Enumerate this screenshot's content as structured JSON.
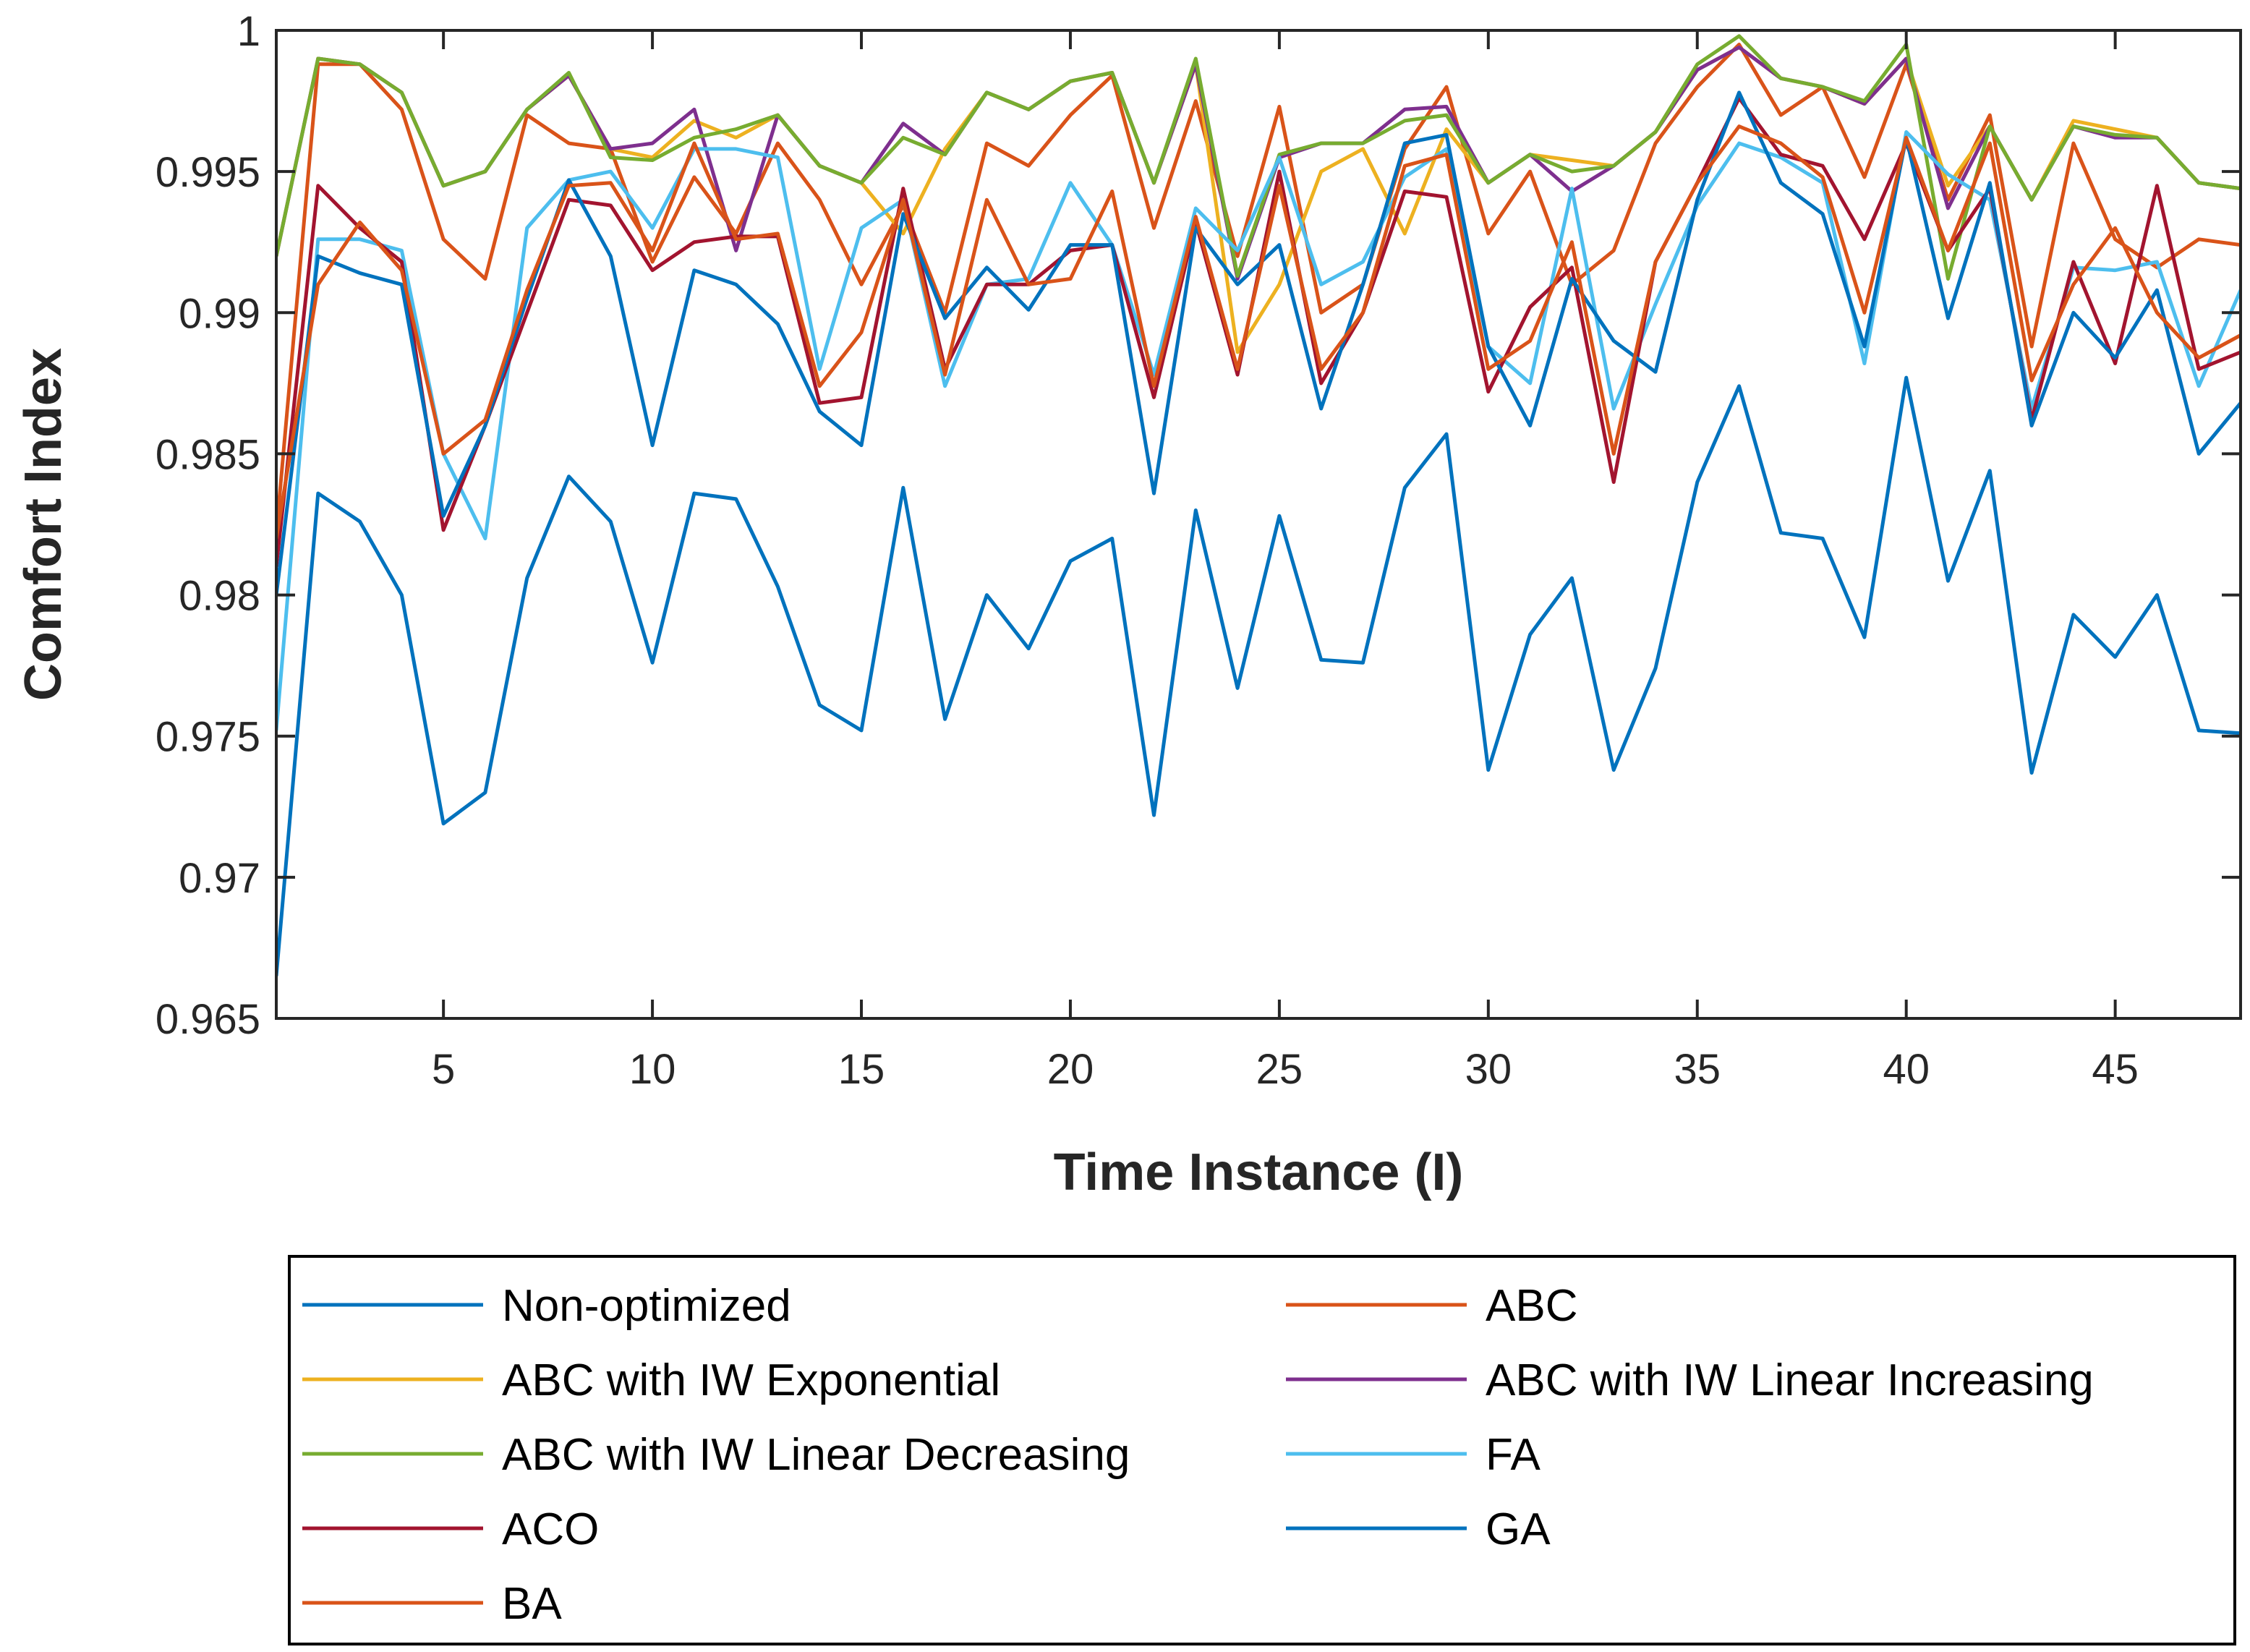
{
  "chart_data": {
    "type": "line",
    "title": "",
    "xlabel": "Time Instance (I)",
    "ylabel": "Comfort Index",
    "xlim": [
      1,
      48
    ],
    "ylim": [
      0.965,
      1.0
    ],
    "xticks": [
      5,
      10,
      15,
      20,
      25,
      30,
      35,
      40,
      45
    ],
    "xtick_labels": [
      "5",
      "10",
      "15",
      "20",
      "25",
      "30",
      "35",
      "40",
      "45"
    ],
    "yticks": [
      0.965,
      0.97,
      0.975,
      0.98,
      0.985,
      0.99,
      0.995,
      1.0
    ],
    "ytick_labels": [
      "0.965",
      "0.97",
      "0.975",
      "0.98",
      "0.985",
      "0.99",
      "0.995",
      "1"
    ],
    "grid": false,
    "legend_position": "bottom",
    "x": [
      1,
      2,
      3,
      4,
      5,
      6,
      7,
      8,
      9,
      10,
      11,
      12,
      13,
      14,
      15,
      16,
      17,
      18,
      19,
      20,
      21,
      22,
      23,
      24,
      25,
      26,
      27,
      28,
      29,
      30,
      31,
      32,
      33,
      34,
      35,
      36,
      37,
      38,
      39,
      40,
      41,
      42,
      43,
      44,
      45,
      46,
      47,
      48
    ],
    "series": [
      {
        "name": "Non-optimized",
        "color": "#0072BD",
        "values": [
          0.9665,
          0.9836,
          0.9826,
          0.98,
          0.9719,
          0.973,
          0.9806,
          0.9842,
          0.9826,
          0.9776,
          0.9836,
          0.9834,
          0.9803,
          0.9761,
          0.9752,
          0.9838,
          0.9756,
          0.98,
          0.9781,
          0.9812,
          0.982,
          0.9722,
          0.983,
          0.9767,
          0.9828,
          0.9777,
          0.9776,
          0.9838,
          0.9857,
          0.9738,
          0.9786,
          0.9806,
          0.9738,
          0.9774,
          0.984,
          0.9874,
          0.9822,
          0.982,
          0.9785,
          0.9877,
          0.9805,
          0.9844,
          0.9737,
          0.9793,
          0.9778,
          0.98,
          0.9752,
          0.9751
        ]
      },
      {
        "name": "ABC",
        "color": "#D95319",
        "values": [
          0.9822,
          0.9988,
          0.9988,
          0.9972,
          0.9926,
          0.9912,
          0.997,
          0.996,
          0.9958,
          0.9918,
          0.9948,
          0.9928,
          0.996,
          0.994,
          0.991,
          0.9938,
          0.99,
          0.996,
          0.9952,
          0.997,
          0.9984,
          0.993,
          0.9975,
          0.992,
          0.9973,
          0.99,
          0.991,
          0.9958,
          0.998,
          0.9928,
          0.995,
          0.991,
          0.9922,
          0.996,
          0.998,
          0.9995,
          0.997,
          0.998,
          0.9948,
          0.9988,
          0.994,
          0.997,
          0.9888,
          0.996,
          0.9926,
          0.9916,
          0.9926,
          0.9924
        ]
      },
      {
        "name": "ABC with IW Exponential",
        "color": "#EDB120",
        "values": [
          0.992,
          0.999,
          0.9988,
          0.9978,
          0.9945,
          0.995,
          0.9972,
          0.9984,
          0.9958,
          0.9955,
          0.9968,
          0.9962,
          0.997,
          0.9952,
          0.9946,
          0.9928,
          0.9958,
          0.9978,
          0.9972,
          0.9982,
          0.9985,
          0.9946,
          0.9988,
          0.9886,
          0.991,
          0.995,
          0.9958,
          0.9928,
          0.9965,
          0.9946,
          0.9956,
          0.9954,
          0.9952,
          0.9964,
          0.9986,
          0.9994,
          0.9983,
          0.998,
          0.9974,
          0.999,
          0.9945,
          0.9966,
          0.994,
          0.9968,
          0.9965,
          0.9962,
          0.9946,
          0.9944
        ]
      },
      {
        "name": "ABC with IW Linear Increasing",
        "color": "#7E2F8E",
        "values": [
          0.992,
          0.999,
          0.9988,
          0.9978,
          0.9945,
          0.995,
          0.9972,
          0.9984,
          0.9958,
          0.996,
          0.9972,
          0.9922,
          0.997,
          0.9952,
          0.9946,
          0.9967,
          0.9956,
          0.9978,
          0.9972,
          0.9982,
          0.9985,
          0.9946,
          0.9988,
          0.9912,
          0.9955,
          0.996,
          0.996,
          0.9972,
          0.9973,
          0.9946,
          0.9956,
          0.9943,
          0.9952,
          0.9964,
          0.9986,
          0.9994,
          0.9983,
          0.998,
          0.9974,
          0.999,
          0.9937,
          0.9966,
          0.994,
          0.9966,
          0.9962,
          0.9962,
          0.9946,
          0.9944
        ]
      },
      {
        "name": "ABC with IW Linear Decreasing",
        "color": "#77AC30",
        "values": [
          0.992,
          0.999,
          0.9988,
          0.9978,
          0.9945,
          0.995,
          0.9972,
          0.9985,
          0.9955,
          0.9954,
          0.9962,
          0.9965,
          0.997,
          0.9952,
          0.9946,
          0.9962,
          0.9956,
          0.9978,
          0.9972,
          0.9982,
          0.9985,
          0.9946,
          0.999,
          0.9913,
          0.9956,
          0.996,
          0.996,
          0.9968,
          0.997,
          0.9946,
          0.9956,
          0.995,
          0.9952,
          0.9964,
          0.9988,
          0.9998,
          0.9983,
          0.998,
          0.9975,
          0.9995,
          0.9912,
          0.9966,
          0.994,
          0.9966,
          0.9963,
          0.9962,
          0.9946,
          0.9944
        ]
      },
      {
        "name": "FA",
        "color": "#4DBEEE",
        "values": [
          0.9752,
          0.9926,
          0.9926,
          0.9922,
          0.985,
          0.982,
          0.993,
          0.9947,
          0.995,
          0.993,
          0.9958,
          0.9958,
          0.9955,
          0.988,
          0.993,
          0.994,
          0.9874,
          0.991,
          0.9912,
          0.9946,
          0.9924,
          0.9878,
          0.9937,
          0.9922,
          0.9955,
          0.991,
          0.9918,
          0.9948,
          0.9958,
          0.9888,
          0.9875,
          0.9944,
          0.9866,
          0.9903,
          0.9938,
          0.996,
          0.9955,
          0.9946,
          0.9882,
          0.9964,
          0.9949,
          0.994,
          0.9866,
          0.9916,
          0.9915,
          0.9918,
          0.9874,
          0.9908
        ]
      },
      {
        "name": "ACO",
        "color": "#A2142F",
        "values": [
          0.981,
          0.9945,
          0.993,
          0.9918,
          0.9823,
          0.986,
          0.99,
          0.994,
          0.9938,
          0.9915,
          0.9925,
          0.9927,
          0.9927,
          0.9868,
          0.987,
          0.9944,
          0.988,
          0.991,
          0.991,
          0.9922,
          0.9924,
          0.987,
          0.9932,
          0.9878,
          0.995,
          0.9875,
          0.99,
          0.9943,
          0.9941,
          0.9872,
          0.9902,
          0.9916,
          0.984,
          0.9918,
          0.9946,
          0.9976,
          0.9956,
          0.9952,
          0.9926,
          0.996,
          0.9922,
          0.9944,
          0.9862,
          0.9918,
          0.9882,
          0.9945,
          0.988,
          0.9886
        ]
      },
      {
        "name": "GA",
        "color": "#0072BD",
        "values": [
          0.98,
          0.992,
          0.9914,
          0.991,
          0.9828,
          0.986,
          0.9905,
          0.9947,
          0.992,
          0.9853,
          0.9915,
          0.991,
          0.9896,
          0.9865,
          0.9853,
          0.9935,
          0.9898,
          0.9916,
          0.9901,
          0.9924,
          0.9924,
          0.9836,
          0.993,
          0.991,
          0.9924,
          0.9866,
          0.991,
          0.996,
          0.9963,
          0.9888,
          0.986,
          0.9912,
          0.989,
          0.9879,
          0.994,
          0.9978,
          0.9946,
          0.9935,
          0.9888,
          0.9962,
          0.9898,
          0.9946,
          0.986,
          0.99,
          0.9884,
          0.9908,
          0.985,
          0.9868
        ]
      },
      {
        "name": "BA",
        "color": "#D95319",
        "values": [
          0.982,
          0.991,
          0.9932,
          0.9915,
          0.985,
          0.9862,
          0.9908,
          0.9945,
          0.9946,
          0.9922,
          0.996,
          0.9926,
          0.9928,
          0.9874,
          0.9893,
          0.994,
          0.9878,
          0.994,
          0.991,
          0.9912,
          0.9943,
          0.9874,
          0.9934,
          0.988,
          0.9945,
          0.988,
          0.99,
          0.9952,
          0.9956,
          0.988,
          0.989,
          0.9925,
          0.985,
          0.9918,
          0.9946,
          0.9966,
          0.996,
          0.9948,
          0.99,
          0.9962,
          0.9922,
          0.996,
          0.9876,
          0.991,
          0.993,
          0.99,
          0.9884,
          0.9892
        ]
      }
    ]
  }
}
